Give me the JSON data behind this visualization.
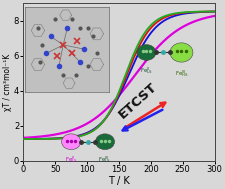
{
  "xlabel": "T / K",
  "ylabel": "χT / cm³mol⁻¹K",
  "xlim": [
    0,
    300
  ],
  "ylim": [
    0,
    9
  ],
  "yticks": [
    0,
    2,
    4,
    6,
    8
  ],
  "xticks": [
    0,
    50,
    100,
    150,
    200,
    250,
    300
  ],
  "bg_color": "#d8d8d8",
  "plot_bg": "#d8d8d8",
  "green_color": "#22aa22",
  "red_color": "#dd1111",
  "blue_color": "#1111dd",
  "magenta_color": "#dd00dd",
  "etcst_fontsize": 10,
  "etcst_color": "#111111",
  "arrow_red": "#ee2222",
  "arrow_blue": "#2222ee",
  "fe_pink_color": "#ff88ff",
  "fe_darkgreen_color": "#1a6b3a",
  "fe_lightgreen_color": "#88dd44",
  "fe_label_pink": "#cc00cc",
  "fe_label_darkgreen": "#1a5530",
  "fe_label_lightgreen": "#336600"
}
